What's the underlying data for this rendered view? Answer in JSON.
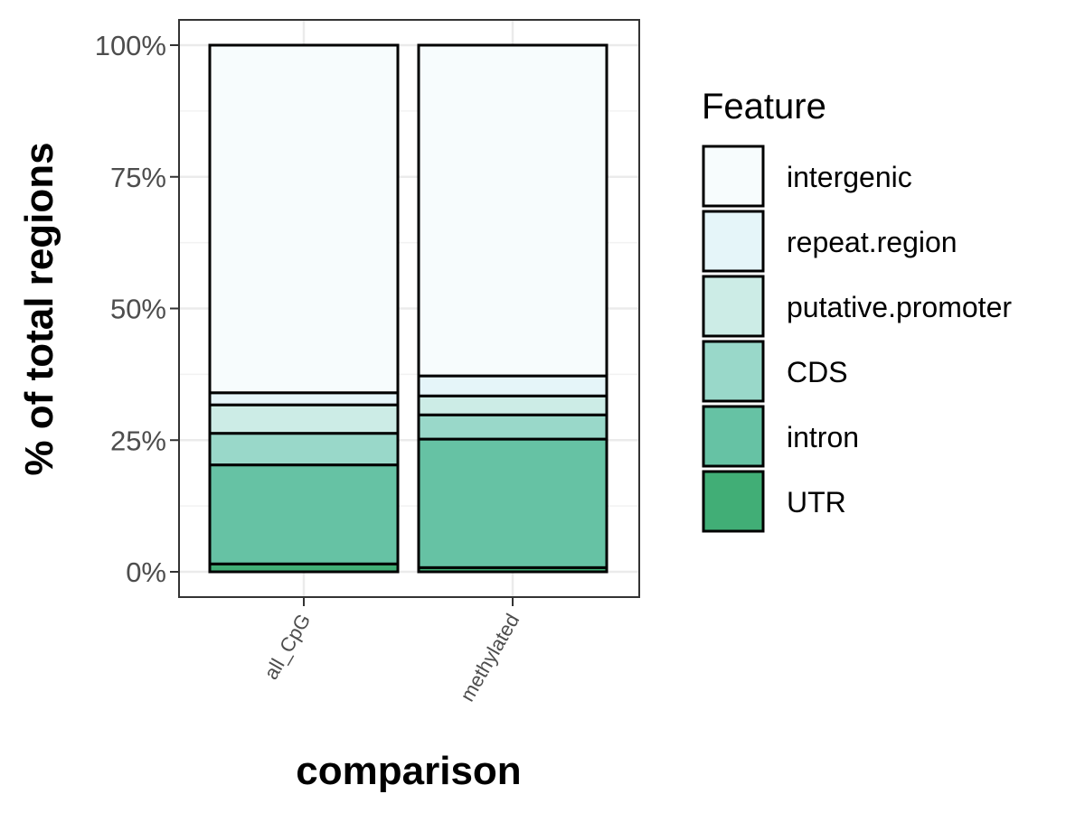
{
  "chart_data": {
    "type": "bar",
    "stacked": true,
    "percent": true,
    "xlabel": "comparison",
    "ylabel": "% of total regions",
    "categories": [
      "all_CpG",
      "methylated"
    ],
    "ylim": [
      0,
      100
    ],
    "yticks": [
      "0%",
      "25%",
      "50%",
      "75%",
      "100%"
    ],
    "ytick_values": [
      0,
      25,
      50,
      75,
      100
    ],
    "grid": true,
    "legend": {
      "title": "Feature",
      "placement": "right",
      "entries": [
        "intergenic",
        "repeat.region",
        "putative.promoter",
        "CDS",
        "intron",
        "UTR"
      ]
    },
    "series": [
      {
        "name": "UTR",
        "color": "#41ae76",
        "values": [
          1.5,
          0.8
        ]
      },
      {
        "name": "intron",
        "color": "#66c2a4",
        "values": [
          18.8,
          24.4
        ]
      },
      {
        "name": "CDS",
        "color": "#99d8c9",
        "values": [
          6.0,
          4.6
        ]
      },
      {
        "name": "putative.promoter",
        "color": "#ccece6",
        "values": [
          5.4,
          3.6
        ]
      },
      {
        "name": "repeat.region",
        "color": "#e5f5f9",
        "values": [
          2.3,
          3.8
        ]
      },
      {
        "name": "intergenic",
        "color": "#f7fcfd",
        "values": [
          66.0,
          62.8
        ]
      }
    ]
  }
}
